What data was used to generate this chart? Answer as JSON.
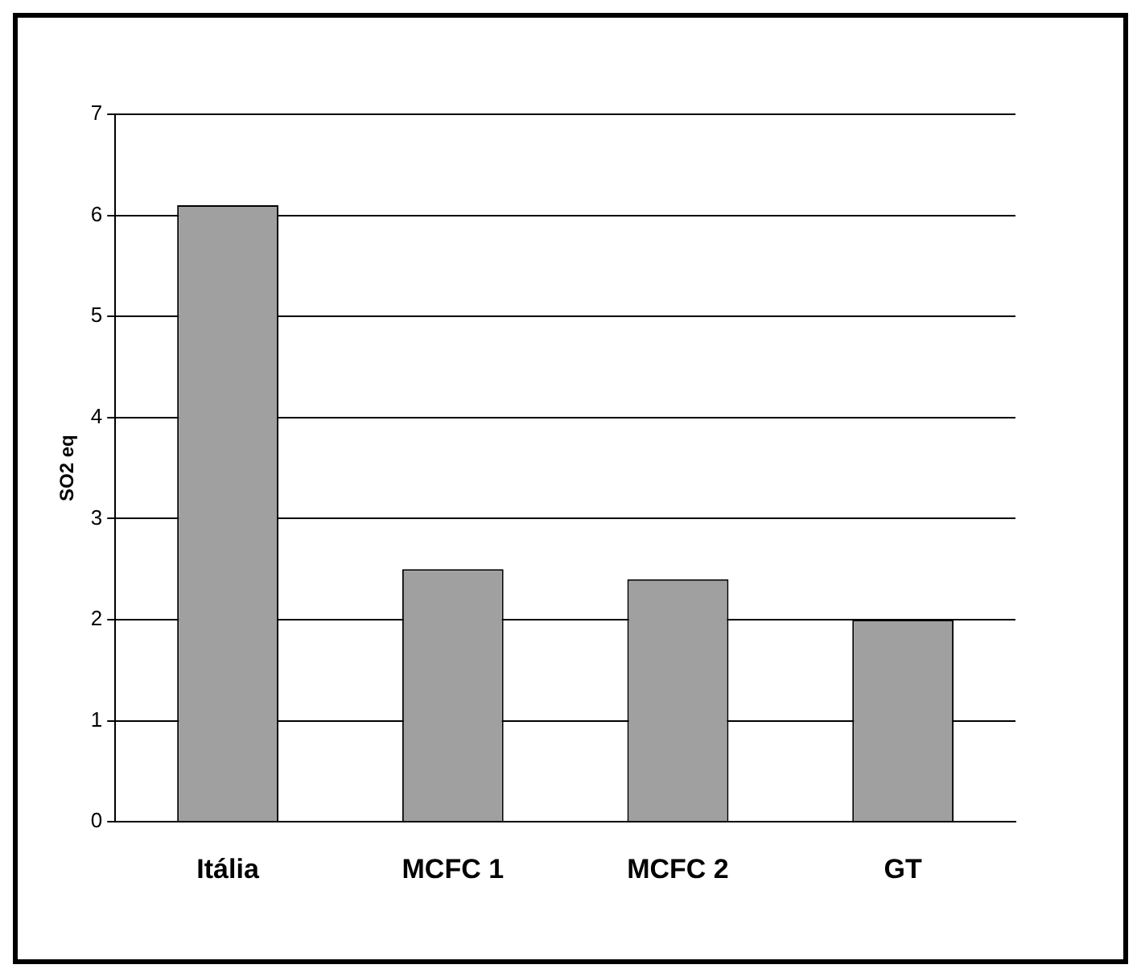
{
  "chart_data": {
    "type": "bar",
    "ylabel": "SO2 eq",
    "categories": [
      "Itália",
      "MCFC 1",
      "MCFC 2",
      "GT"
    ],
    "values": [
      6.1,
      2.5,
      2.4,
      2.0
    ],
    "color": "#a0a0a0",
    "ylim": [
      0,
      7
    ],
    "yticks": [
      0,
      1,
      2,
      3,
      4,
      5,
      6,
      7
    ],
    "grid": "y",
    "legend": false
  }
}
